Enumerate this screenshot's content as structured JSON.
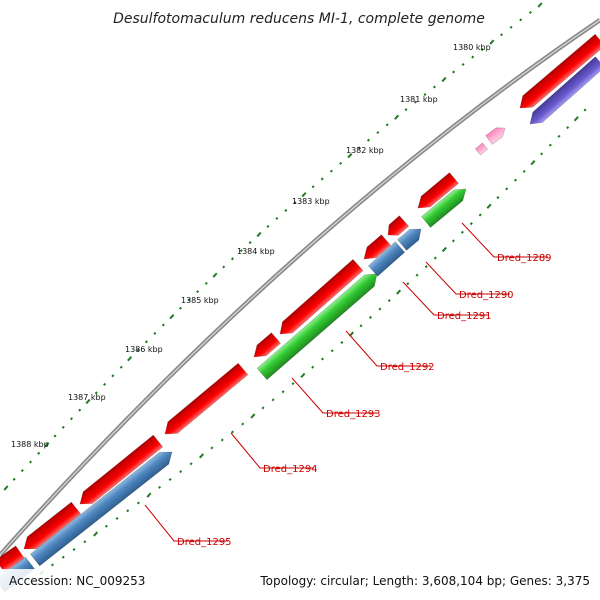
{
  "title": "Desulfotomaculum reducens MI-1, complete genome",
  "kbp_ticks": [
    "1380 kbp",
    "1381 kbp",
    "1382 kbp",
    "1383 kbp",
    "1384 kbp",
    "1385 kbp",
    "1386 kbp",
    "1387 kbp",
    "1388 kbp"
  ],
  "gene_labels": [
    "Dred_1289",
    "Dred_1290",
    "Dred_1291",
    "Dred_1292",
    "Dred_1293",
    "Dred_1294",
    "Dred_1295"
  ],
  "footer": {
    "accession": "Accession: NC_009253",
    "summary": "Topology: circular; Length: 3,608,104 bp; Genes: 3,375"
  },
  "colors": {
    "backbone": "#8a8a8a",
    "forward_cds": "#ff0000",
    "reverse_blue": "#4f87c0",
    "reverse_green": "#33cc33",
    "purple": "#6a5acd",
    "pink": "#ff99cc",
    "tick_dots": "#1f7a1f",
    "label_red": "#cc0000"
  }
}
